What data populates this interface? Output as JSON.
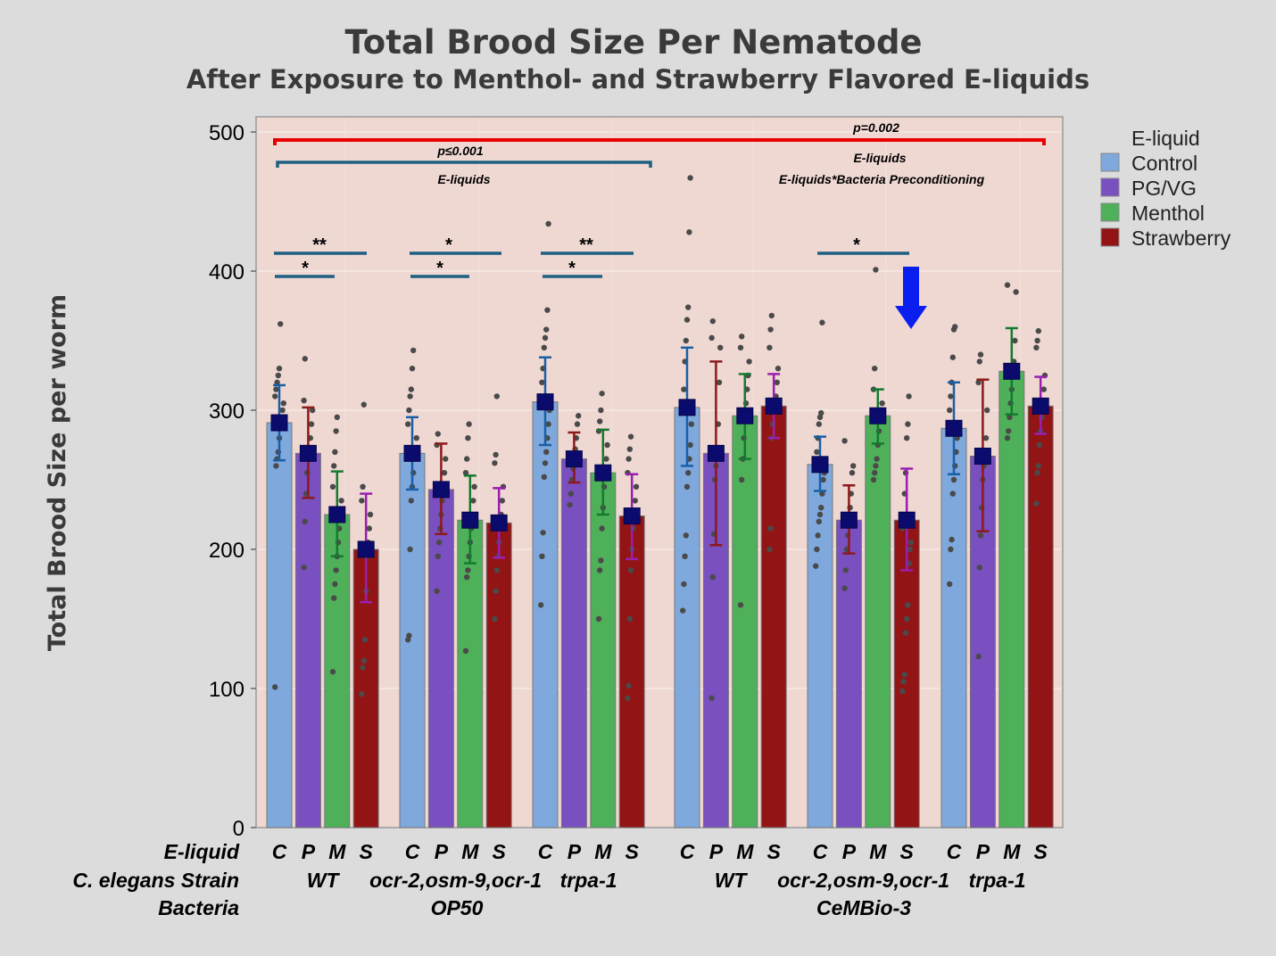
{
  "chart_data": {
    "type": "bar",
    "title": "Total Brood Size Per Nematode",
    "subtitle": "After Exposure to Menthol- and Strawberry Flavored E-liquids",
    "ylabel": "Total Brood Size per worm",
    "ylim": [
      0,
      510
    ],
    "yticks": [
      0,
      100,
      200,
      300,
      400,
      500
    ],
    "row_labels": [
      "E-liquid",
      "C. elegans Strain",
      "Bacteria"
    ],
    "legend": {
      "title": "E-liquid",
      "position": "right",
      "items": [
        {
          "name": "Control",
          "color": "#7fa8dd"
        },
        {
          "name": "PG/VG",
          "color": "#7a4fc0"
        },
        {
          "name": "Menthol",
          "color": "#4fb05a"
        },
        {
          "name": "Strawberry",
          "color": "#921414"
        }
      ]
    },
    "error_colors": [
      "#1a5fa6",
      "#8b1a1a",
      "#137a2e",
      "#9a1fb0"
    ],
    "categories": [
      "C",
      "P",
      "M",
      "S"
    ],
    "groups": [
      {
        "strain": "WT",
        "bacteria": "OP50",
        "values": [
          291,
          269,
          225,
          200
        ],
        "err_low": [
          264,
          237,
          195,
          162
        ],
        "err_high": [
          318,
          302,
          256,
          240
        ]
      },
      {
        "strain": "ocr-2,osm-9,ocr-1",
        "bacteria": "OP50",
        "values": [
          269,
          243,
          221,
          219
        ],
        "err_low": [
          243,
          211,
          190,
          194
        ],
        "err_high": [
          295,
          276,
          253,
          244
        ]
      },
      {
        "strain": "trpa-1",
        "bacteria": "OP50",
        "values": [
          306,
          265,
          255,
          224
        ],
        "err_low": [
          275,
          248,
          225,
          193
        ],
        "err_high": [
          338,
          284,
          286,
          254
        ]
      },
      {
        "strain": "WT",
        "bacteria": "CeMBio-3",
        "values": [
          302,
          269,
          296,
          303
        ],
        "err_low": [
          260,
          203,
          265,
          280
        ],
        "err_high": [
          345,
          335,
          326,
          326
        ]
      },
      {
        "strain": "ocr-2,osm-9,ocr-1",
        "bacteria": "CeMBio-3",
        "values": [
          261,
          221,
          296,
          221
        ],
        "err_low": [
          242,
          197,
          276,
          185
        ],
        "err_high": [
          281,
          246,
          315,
          258
        ]
      },
      {
        "strain": "trpa-1",
        "bacteria": "CeMBio-3",
        "values": [
          287,
          267,
          328,
          303
        ],
        "err_low": [
          254,
          213,
          297,
          283
        ],
        "err_high": [
          320,
          322,
          359,
          324
        ]
      }
    ],
    "bacteria_labels": [
      "OP50",
      "CeMBio-3"
    ],
    "points": [
      [
        [
          101,
          260,
          265,
          270,
          280,
          290,
          295,
          300,
          305,
          310,
          315,
          320,
          325,
          330,
          362
        ],
        [
          187,
          220,
          240,
          255,
          265,
          270,
          280,
          290,
          300,
          307,
          337
        ],
        [
          112,
          165,
          175,
          185,
          195,
          205,
          215,
          225,
          235,
          245,
          260,
          270,
          285,
          295
        ],
        [
          96,
          115,
          120,
          135,
          170,
          195,
          205,
          215,
          225,
          235,
          245,
          304
        ]
      ],
      [
        [
          135,
          138,
          200,
          235,
          245,
          255,
          265,
          270,
          280,
          290,
          300,
          310,
          315,
          330,
          343
        ],
        [
          170,
          195,
          205,
          215,
          225,
          235,
          245,
          255,
          265,
          275,
          283
        ],
        [
          127,
          180,
          185,
          195,
          205,
          215,
          225,
          235,
          245,
          255,
          265,
          280,
          290
        ],
        [
          150,
          170,
          185,
          195,
          205,
          215,
          225,
          235,
          245,
          262,
          268,
          310
        ]
      ],
      [
        [
          160,
          195,
          212,
          252,
          262,
          270,
          280,
          290,
          300,
          310,
          320,
          330,
          345,
          352,
          358,
          372,
          434
        ],
        [
          232,
          240,
          250,
          258,
          265,
          272,
          280,
          290,
          296
        ],
        [
          150,
          185,
          192,
          215,
          230,
          245,
          255,
          265,
          275,
          285,
          292,
          300,
          312
        ],
        [
          93,
          102,
          150,
          185,
          200,
          215,
          225,
          235,
          245,
          255,
          265,
          272,
          281
        ]
      ],
      [
        [
          156,
          175,
          195,
          210,
          245,
          255,
          265,
          275,
          290,
          305,
          315,
          335,
          350,
          365,
          374,
          428,
          467
        ],
        [
          93,
          180,
          211,
          250,
          260,
          270,
          290,
          320,
          345,
          352,
          364
        ],
        [
          160,
          250,
          265,
          280,
          295,
          305,
          315,
          325,
          335,
          345,
          353
        ],
        [
          200,
          215,
          280,
          290,
          300,
          305,
          310,
          320,
          330,
          345,
          358,
          368
        ]
      ],
      [
        [
          188,
          200,
          210,
          220,
          225,
          230,
          240,
          250,
          255,
          260,
          270,
          280,
          290,
          295,
          298,
          363
        ],
        [
          172,
          185,
          200,
          210,
          220,
          230,
          240,
          255,
          260,
          278
        ],
        [
          250,
          255,
          260,
          265,
          275,
          285,
          295,
          300,
          305,
          315,
          330,
          401
        ],
        [
          98,
          105,
          110,
          140,
          150,
          160,
          190,
          200,
          205,
          215,
          225,
          240,
          255,
          280,
          290,
          310
        ]
      ],
      [
        [
          175,
          200,
          207,
          240,
          250,
          260,
          270,
          280,
          290,
          300,
          310,
          320,
          338,
          358,
          360
        ],
        [
          123,
          187,
          210,
          230,
          250,
          260,
          270,
          280,
          300,
          320,
          335,
          340
        ],
        [
          280,
          285,
          295,
          305,
          315,
          325,
          335,
          350,
          385,
          390
        ],
        [
          233,
          255,
          260,
          275,
          285,
          295,
          305,
          315,
          325,
          345,
          350,
          357
        ]
      ]
    ],
    "annotations": {
      "overall_p": "p=0.002",
      "overall_term1": "E-liquids",
      "overall_term2": "E-liquids*Bacteria Preconditioning",
      "op50_p": "p≤0.001",
      "op50_term": "E-liquids",
      "stars_double": "**",
      "stars_single": "*"
    },
    "grid": true
  }
}
